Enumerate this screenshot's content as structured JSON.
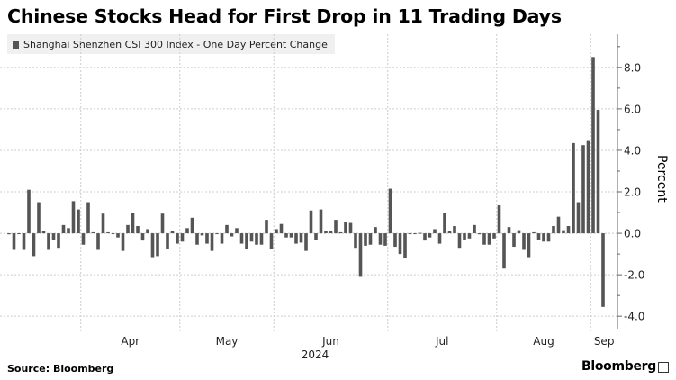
{
  "chart_data": {
    "type": "bar",
    "title": "Chinese Stocks Head for First Drop in 11 Trading Days",
    "legend": [
      "Shanghai Shenzhen CSI 300 Index - One Day Percent Change"
    ],
    "ylabel": "Percent",
    "ylim": [
      -4.6,
      9.6
    ],
    "yticks": [
      "8.0",
      "6.0",
      "4.0",
      "2.0",
      "0.0",
      "-2.0",
      "-4.0"
    ],
    "ytick_values": [
      8,
      6,
      4,
      2,
      0,
      -2,
      -4
    ],
    "x_year_label": "2024",
    "month_ticks": [
      {
        "label": "Apr",
        "start_index": 15,
        "end_index": 35
      },
      {
        "label": "May",
        "start_index": 35,
        "end_index": 54
      },
      {
        "label": "Jun",
        "start_index": 54,
        "end_index": 77
      },
      {
        "label": "Jul",
        "start_index": 77,
        "end_index": 99
      },
      {
        "label": "Aug",
        "start_index": 99,
        "end_index": 118
      },
      {
        "label": "Sep",
        "start_index": 118,
        "end_index": 137
      }
    ],
    "grid": true,
    "bar_color": "#555555",
    "values": [
      -0.05,
      -0.8,
      0,
      -0.8,
      2.1,
      -1.1,
      1.5,
      0.1,
      -0.8,
      -0.3,
      -0.7,
      0.4,
      0.25,
      1.55,
      1.15,
      -0.55,
      1.5,
      0.05,
      -0.8,
      0.95,
      0.05,
      0,
      -0.2,
      -0.85,
      0.4,
      1.0,
      0.35,
      -0.35,
      0.2,
      -1.15,
      -1.1,
      0.95,
      -0.75,
      0.1,
      -0.5,
      -0.4,
      0.25,
      0.75,
      -0.55,
      -0.1,
      -0.5,
      -0.85,
      0,
      -0.5,
      0.4,
      -0.15,
      0.25,
      -0.5,
      -0.75,
      -0.4,
      -0.55,
      -0.55,
      0.65,
      -0.75,
      0.2,
      0.45,
      -0.2,
      -0.2,
      -0.5,
      -0.45,
      -0.85,
      1.1,
      -0.3,
      1.15,
      0.1,
      0.1,
      0.65,
      0.05,
      0.55,
      0.5,
      -0.7,
      -2.1,
      -0.6,
      -0.55,
      0.3,
      -0.55,
      -0.6,
      2.15,
      -0.65,
      -1.0,
      -1.2,
      0,
      0,
      0.02,
      -0.35,
      -0.2,
      0.2,
      -0.5,
      1.0,
      0.1,
      0.35,
      -0.7,
      -0.3,
      -0.25,
      0.4,
      -0.05,
      -0.55,
      -0.55,
      -0.25,
      1.35,
      -1.7,
      0.3,
      -0.65,
      0.15,
      -0.8,
      -1.15,
      0.05,
      -0.3,
      -0.4,
      -0.4,
      0.35,
      0.8,
      0.15,
      0.35,
      4.35,
      1.5,
      4.25,
      4.45,
      8.5,
      5.95,
      -3.55
    ]
  },
  "footer": {
    "source": "Source: Bloomberg",
    "logo": "Bloomberg"
  }
}
